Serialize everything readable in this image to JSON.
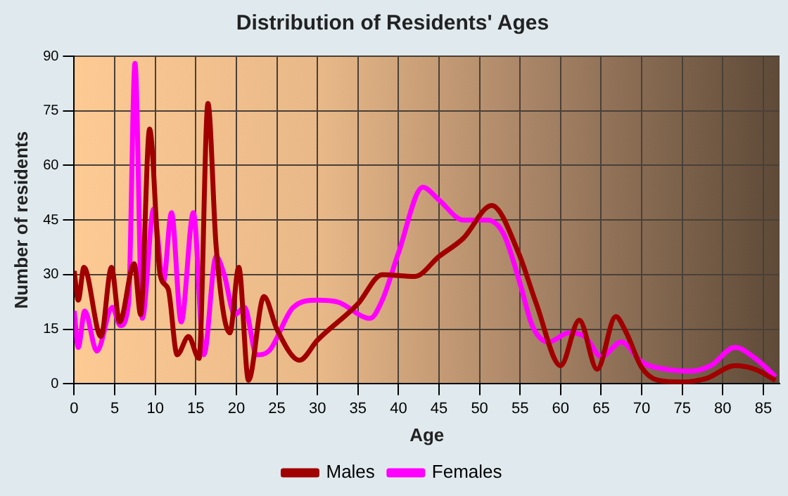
{
  "chart_data": {
    "type": "line",
    "title": "Distribution of Residents' Ages",
    "xlabel": "Age",
    "ylabel": "Number of residents",
    "xlim": [
      0,
      87
    ],
    "xticks": [
      0,
      5,
      10,
      15,
      20,
      25,
      30,
      35,
      40,
      45,
      50,
      55,
      60,
      65,
      70,
      75,
      80,
      85
    ],
    "ylim": [
      0,
      90
    ],
    "yticks": [
      0,
      15,
      30,
      45,
      60,
      75,
      90
    ],
    "grid": true,
    "legend": "bottom",
    "marker": "none",
    "line_style": "solid",
    "series": [
      {
        "name": "Males",
        "color": "#a00000",
        "x": [
          0,
          0.5,
          1.2,
          3.3,
          4.6,
          5.6,
          7.4,
          8.2,
          9.3,
          10.6,
          11.6,
          12.7,
          14.1,
          15.4,
          16.5,
          17.5,
          19.2,
          20.3,
          21.5,
          23.4,
          25,
          27.8,
          30,
          35,
          38,
          42,
          45,
          48,
          51.5,
          54.8,
          57,
          60,
          62.3,
          64.5,
          66.8,
          68,
          70,
          72,
          75,
          78,
          81.5,
          84,
          86.5
        ],
        "values": [
          31,
          23,
          32,
          13,
          32,
          17,
          33,
          19,
          70,
          30,
          26,
          8,
          13,
          7,
          77,
          38,
          14,
          32,
          1,
          24,
          15,
          6.5,
          12,
          22,
          30,
          29.5,
          35,
          40,
          49,
          36,
          22,
          5,
          17.5,
          4,
          18.5,
          14.5,
          4.5,
          1,
          0.5,
          1.5,
          5,
          4,
          1
        ]
      },
      {
        "name": "Females",
        "color": "#ff00ff",
        "x": [
          0,
          0.5,
          1.3,
          2.8,
          4.7,
          5.7,
          6.7,
          7.5,
          8.4,
          9.8,
          11,
          12,
          13.2,
          14.7,
          16,
          17.5,
          18.5,
          19.8,
          21,
          22.5,
          24,
          27,
          30,
          32.5,
          36.5,
          38,
          40,
          43,
          45,
          48,
          51,
          53,
          55,
          56.5,
          58.5,
          61,
          63,
          65,
          67.5,
          70,
          73,
          76,
          78.5,
          81.5,
          84,
          86.5
        ],
        "values": [
          20,
          10,
          20,
          9,
          21,
          16,
          22,
          88,
          18,
          48,
          28,
          47,
          17,
          47,
          8,
          35,
          30,
          19,
          21,
          8,
          9,
          21,
          23,
          22.5,
          18,
          23,
          36,
          54,
          50.5,
          45,
          45,
          41,
          27.5,
          16,
          11.5,
          14,
          13,
          7.5,
          11.5,
          6,
          4,
          3.5,
          5,
          10,
          7,
          2
        ]
      }
    ]
  }
}
